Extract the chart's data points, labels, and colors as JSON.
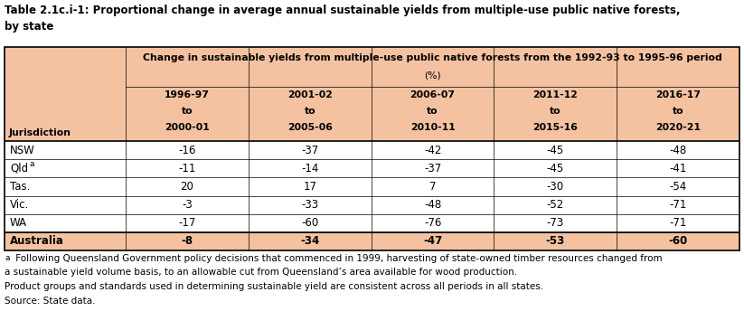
{
  "title_line1": "Table 2.1c.i-1: Proportional change in average annual sustainable yields from multiple-use public native forests,",
  "title_line2": "by state",
  "header_main": "Change in sustainable yields from multiple-use public native forests from the 1992-93 to 1995-96 period",
  "header_pct": "(%)",
  "col_headers_line1": [
    "1996-97",
    "2001-02",
    "2006-07",
    "2011-12",
    "2016-17"
  ],
  "col_headers_line2": [
    "to",
    "to",
    "to",
    "to",
    "to"
  ],
  "col_headers_line3": [
    "2000-01",
    "2005-06",
    "2010-11",
    "2015-16",
    "2020-21"
  ],
  "row_labels_plain": [
    "NSW",
    "Qld",
    "Tas.",
    "Vic.",
    "WA",
    "Australia"
  ],
  "data": [
    [
      -16,
      -37,
      -42,
      -45,
      -48
    ],
    [
      -11,
      -14,
      -37,
      -45,
      -41
    ],
    [
      20,
      17,
      7,
      -30,
      -54
    ],
    [
      -3,
      -33,
      -48,
      -52,
      -71
    ],
    [
      -17,
      -60,
      -76,
      -73,
      -71
    ],
    [
      -8,
      -34,
      -47,
      -53,
      -60
    ]
  ],
  "jurisdiction_label": "Jurisdiction",
  "header_bg": "#F4C2A1",
  "data_row_bg": "#FFFFFF",
  "australia_row_bg": "#F4C2A1",
  "footnote1a": "a",
  "footnote1b": " Following Queensland Government policy decisions that commenced in 1999, harvesting of state-owned timber resources changed from",
  "footnote2": "a sustainable yield volume basis, to an allowable cut from Queensland’s area available for wood production.",
  "footnote3": "Product groups and standards used in determining sustainable yield are consistent across all periods in all states.",
  "footnote4": "Source: State data.",
  "border_color": "#000000",
  "text_color": "#000000",
  "title_font_size": 8.5,
  "header_font_size": 7.8,
  "data_font_size": 8.5,
  "footnote_font_size": 7.5
}
